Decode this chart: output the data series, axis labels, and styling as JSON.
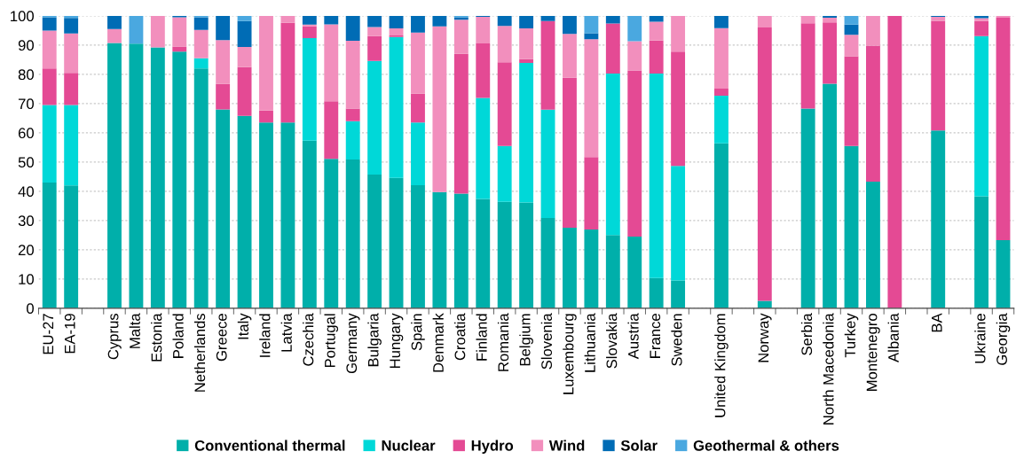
{
  "chart_data": {
    "type": "bar",
    "stacked": true,
    "categories": [
      "EU-27",
      "EA-19",
      null,
      "Cyprus",
      "Malta",
      "Estonia",
      "Poland",
      "Netherlands",
      "Greece",
      "Italy",
      "Ireland",
      "Latvia",
      "Czechia",
      "Portugal",
      "Germany",
      "Bulgaria",
      "Hungary",
      "Spain",
      "Denmark",
      "Croatia",
      "Finland",
      "Romania",
      "Belgium",
      "Slovenia",
      "Luxembourg",
      "Lithuania",
      "Slovakia",
      "Austria",
      "France",
      "Sweden",
      null,
      "United Kingdom",
      null,
      "Norway",
      null,
      "Serbia",
      "North Macedonia",
      "Turkey",
      "Montenegro",
      "Albania",
      null,
      "BA",
      null,
      "Ukraine",
      "Georgia"
    ],
    "series": [
      {
        "name": "Conventional thermal",
        "color": "#00afaa",
        "values": [
          43,
          42,
          null,
          90.7,
          90.5,
          89.2,
          87.8,
          82,
          68,
          65.8,
          63.5,
          63.5,
          57.3,
          51.1,
          50.9,
          45.7,
          44.6,
          42.1,
          39.7,
          39.2,
          37.4,
          36.4,
          36.2,
          30.9,
          27.5,
          26.9,
          25,
          24.5,
          10.3,
          9.5,
          null,
          56.4,
          null,
          2.5,
          null,
          68.3,
          76.8,
          55.5,
          43.3,
          0,
          null,
          60.8,
          null,
          38.3,
          23.3
        ]
      },
      {
        "name": "Nuclear",
        "color": "#00d8d8",
        "values": [
          26.5,
          27.5,
          null,
          0,
          0,
          0,
          0,
          3.5,
          0,
          0,
          0,
          0,
          35.1,
          0,
          13.1,
          38.9,
          48.2,
          21.4,
          0,
          0,
          34.5,
          19.1,
          47.7,
          37,
          0,
          0,
          55.3,
          0,
          70,
          39.2,
          null,
          16.3,
          null,
          0,
          null,
          0,
          0,
          0,
          0,
          0,
          null,
          0,
          null,
          54.8,
          0
        ]
      },
      {
        "name": "Hydro",
        "color": "#e44a94",
        "values": [
          12.5,
          11,
          null,
          0,
          0,
          0,
          1.7,
          0,
          8.7,
          16.7,
          4.1,
          34.1,
          4,
          19.7,
          4.3,
          8.5,
          0.5,
          9.9,
          0,
          47.8,
          18.7,
          28.6,
          1.3,
          30.3,
          51.3,
          24.8,
          17.1,
          56.8,
          11.3,
          39.1,
          null,
          2.4,
          null,
          93.5,
          null,
          29.2,
          21,
          30.7,
          46.5,
          100,
          null,
          37.5,
          null,
          5.1,
          76.1
        ]
      },
      {
        "name": "Wind",
        "color": "#f28fbd",
        "values": [
          13,
          13.5,
          null,
          4.8,
          0,
          10.8,
          10,
          9.7,
          15,
          6.9,
          32.4,
          2.4,
          0.6,
          26.3,
          23.2,
          3.1,
          2.4,
          20.9,
          56.7,
          11.7,
          9.1,
          12.5,
          10.5,
          0,
          15,
          40.3,
          0,
          10,
          6.4,
          12.2,
          null,
          20.7,
          null,
          4,
          null,
          2.5,
          1.6,
          7.3,
          10.2,
          0,
          null,
          1.4,
          null,
          1,
          0.6
        ]
      },
      {
        "name": "Solar",
        "color": "#006cb5",
        "values": [
          4.5,
          5.3,
          null,
          4.5,
          0,
          0,
          0.5,
          4.3,
          8.3,
          8.8,
          0,
          0,
          3,
          2.9,
          8.5,
          3.8,
          4.3,
          5.7,
          3.6,
          0.8,
          0.3,
          3.4,
          4.3,
          1.8,
          6.2,
          2.1,
          2.6,
          0,
          2,
          0,
          null,
          4.2,
          null,
          0,
          null,
          0,
          0.6,
          3.5,
          0,
          0,
          null,
          0.3,
          null,
          0.8,
          0
        ]
      },
      {
        "name": "Geothermal & others",
        "color": "#4aa8e0",
        "values": [
          0.5,
          0.7,
          null,
          0,
          9.5,
          0,
          0,
          0.5,
          0,
          1.8,
          0,
          0,
          0,
          0,
          0,
          0,
          0,
          0,
          0,
          0.5,
          0,
          0,
          0,
          0,
          0,
          5.9,
          0,
          8.7,
          0,
          0,
          null,
          0,
          null,
          0,
          null,
          0,
          0,
          3,
          0,
          0,
          null,
          0,
          null,
          0,
          0
        ]
      }
    ],
    "ylim": [
      0,
      100
    ],
    "yticks": [
      0,
      10,
      20,
      30,
      40,
      50,
      60,
      70,
      80,
      90,
      100
    ],
    "grid": "y",
    "legend": "bottom"
  }
}
